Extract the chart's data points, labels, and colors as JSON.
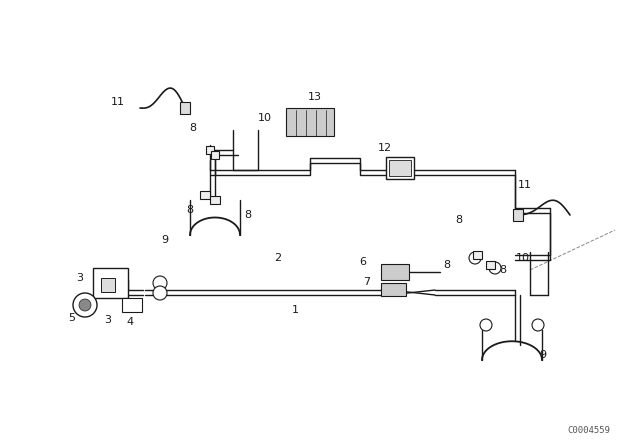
{
  "background_color": "#ffffff",
  "watermark": "C0004559",
  "fig_width": 6.4,
  "fig_height": 4.48,
  "dpi": 100,
  "line_color": "#1a1a1a",
  "line_width": 1.0
}
